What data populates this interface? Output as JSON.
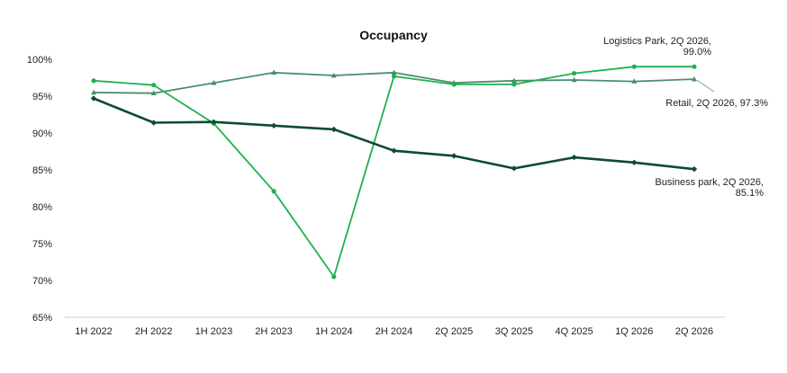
{
  "chart_data": {
    "type": "line",
    "title": "Occupancy",
    "xlabel": "",
    "ylabel": "",
    "categories": [
      "1H 2022",
      "2H 2022",
      "1H 2023",
      "2H 2023",
      "1H 2024",
      "2H 2024",
      "2Q 2025",
      "3Q 2025",
      "4Q 2025",
      "1Q 2026",
      "2Q 2026"
    ],
    "ylim": [
      65,
      100
    ],
    "yticks": [
      65,
      70,
      75,
      80,
      85,
      90,
      95,
      100
    ],
    "ytick_labels": [
      "65%",
      "70%",
      "75%",
      "80%",
      "85%",
      "90%",
      "95%",
      "100%"
    ],
    "grid": false,
    "legend": "none",
    "series": [
      {
        "values": [
          95.5,
          95.4,
          96.8,
          98.2,
          97.8,
          98.2,
          96.8,
          97.1,
          97.2,
          97.0,
          97.3
        ],
        "color": "#4a8f6a",
        "marker": "triangle"
      },
      {
        "values": [
          97.1,
          96.5,
          91.3,
          82.1,
          70.5,
          97.7,
          96.6,
          96.6,
          98.1,
          99.0,
          99.0
        ],
        "color": "#1fb14f",
        "marker": "circle"
      },
      {
        "values": [
          94.7,
          91.4,
          91.5,
          91.0,
          90.5,
          87.6,
          86.9,
          85.2,
          86.7,
          86.0,
          85.1
        ],
        "color": "#0f4a32",
        "marker": "diamond"
      }
    ],
    "annotations": [
      {
        "series": 1,
        "lines": [
          "Logistics Park, 2Q 2026,",
          "99.0%"
        ]
      },
      {
        "series": 0,
        "lines": [
          "Retail, 2Q 2026, 97.3%"
        ]
      },
      {
        "series": 2,
        "lines": [
          "Business park, 2Q 2026,",
          "85.1%"
        ]
      }
    ]
  }
}
